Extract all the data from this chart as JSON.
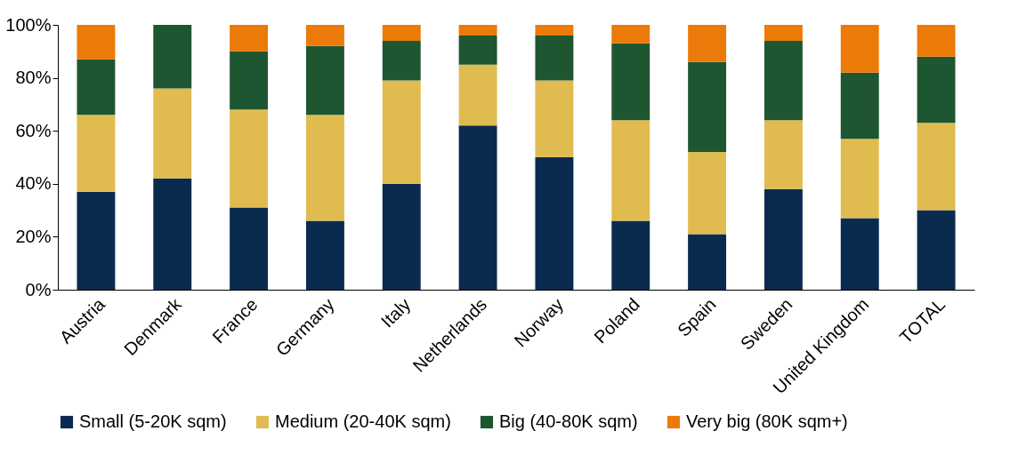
{
  "chart_data": {
    "type": "bar",
    "stacked": true,
    "categories": [
      "Austria",
      "Denmark",
      "France",
      "Germany",
      "Italy",
      "Netherlands",
      "Norway",
      "Poland",
      "Spain",
      "Sweden",
      "United Kingdom",
      "TOTAL"
    ],
    "series": [
      {
        "name": "Small (5-20K sqm)",
        "color": "#0b2a4f",
        "values": [
          37,
          42,
          31,
          26,
          40,
          62,
          50,
          26,
          21,
          38,
          27,
          30
        ]
      },
      {
        "name": "Medium (20-40K sqm)",
        "color": "#e0bb4f",
        "values": [
          29,
          34,
          37,
          40,
          39,
          23,
          29,
          38,
          31,
          26,
          30,
          33
        ]
      },
      {
        "name": "Big (40-80K sqm)",
        "color": "#1e5631",
        "values": [
          21,
          24,
          22,
          26,
          15,
          11,
          17,
          29,
          34,
          30,
          25,
          25
        ]
      },
      {
        "name": "Very big (80K sqm+)",
        "color": "#ec7a08",
        "values": [
          13,
          0,
          10,
          8,
          6,
          4,
          4,
          7,
          14,
          6,
          18,
          12
        ]
      }
    ],
    "ylim": [
      0,
      100
    ],
    "yticks": [
      {
        "value": 0,
        "label": "0%"
      },
      {
        "value": 20,
        "label": "20%"
      },
      {
        "value": 40,
        "label": "40%"
      },
      {
        "value": 60,
        "label": "60%"
      },
      {
        "value": 80,
        "label": "80%"
      },
      {
        "value": 100,
        "label": "100%"
      }
    ],
    "grid": false,
    "legend": "bottom"
  }
}
